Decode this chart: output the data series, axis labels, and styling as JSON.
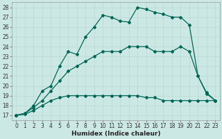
{
  "xlabel": "Humidex (Indice chaleur)",
  "bg_color": "#cce8e4",
  "line_color": "#006655",
  "xlim": [
    -0.5,
    23.5
  ],
  "ylim": [
    16.5,
    28.5
  ],
  "xticks": [
    0,
    1,
    2,
    3,
    4,
    5,
    6,
    7,
    8,
    9,
    10,
    11,
    12,
    13,
    14,
    15,
    16,
    17,
    18,
    19,
    20,
    21,
    22,
    23
  ],
  "yticks": [
    17,
    18,
    19,
    20,
    21,
    22,
    23,
    24,
    25,
    26,
    27,
    28
  ],
  "series1_x": [
    0,
    1,
    2,
    3,
    4,
    5,
    6,
    7,
    8,
    9,
    10,
    11,
    12,
    13,
    14,
    15,
    16,
    17,
    18,
    19,
    20,
    21,
    22,
    23
  ],
  "series1_y": [
    17.0,
    17.1,
    17.5,
    18.0,
    18.5,
    18.8,
    19.0,
    19.0,
    19.0,
    19.0,
    19.0,
    19.0,
    19.0,
    19.0,
    19.0,
    18.8,
    18.8,
    18.5,
    18.5,
    18.5,
    18.5,
    18.5,
    18.5,
    18.5
  ],
  "series2_x": [
    0,
    1,
    2,
    3,
    4,
    5,
    6,
    7,
    8,
    9,
    10,
    11,
    12,
    13,
    14,
    15,
    16,
    17,
    18,
    19,
    20,
    21,
    22,
    23
  ],
  "series2_y": [
    17.0,
    17.2,
    17.8,
    18.5,
    19.5,
    20.5,
    21.5,
    22.0,
    22.5,
    23.0,
    23.5,
    23.5,
    23.5,
    24.0,
    24.0,
    24.0,
    23.5,
    23.5,
    23.5,
    24.0,
    23.5,
    21.0,
    19.3,
    18.5
  ],
  "series3_x": [
    0,
    1,
    2,
    3,
    4,
    5,
    6,
    7,
    8,
    9,
    10,
    11,
    12,
    13,
    14,
    15,
    16,
    17,
    18,
    19,
    20,
    21,
    22,
    23
  ],
  "series3_y": [
    17.0,
    17.2,
    18.0,
    19.5,
    20.0,
    22.0,
    23.5,
    23.2,
    25.0,
    26.0,
    27.2,
    27.0,
    26.6,
    26.5,
    28.0,
    27.8,
    27.5,
    27.3,
    27.0,
    27.0,
    26.2,
    21.0,
    19.2,
    18.5
  ],
  "grid_color": "#b8d8d4",
  "font_size_ticks": 5.5,
  "font_size_xlabel": 6.5
}
